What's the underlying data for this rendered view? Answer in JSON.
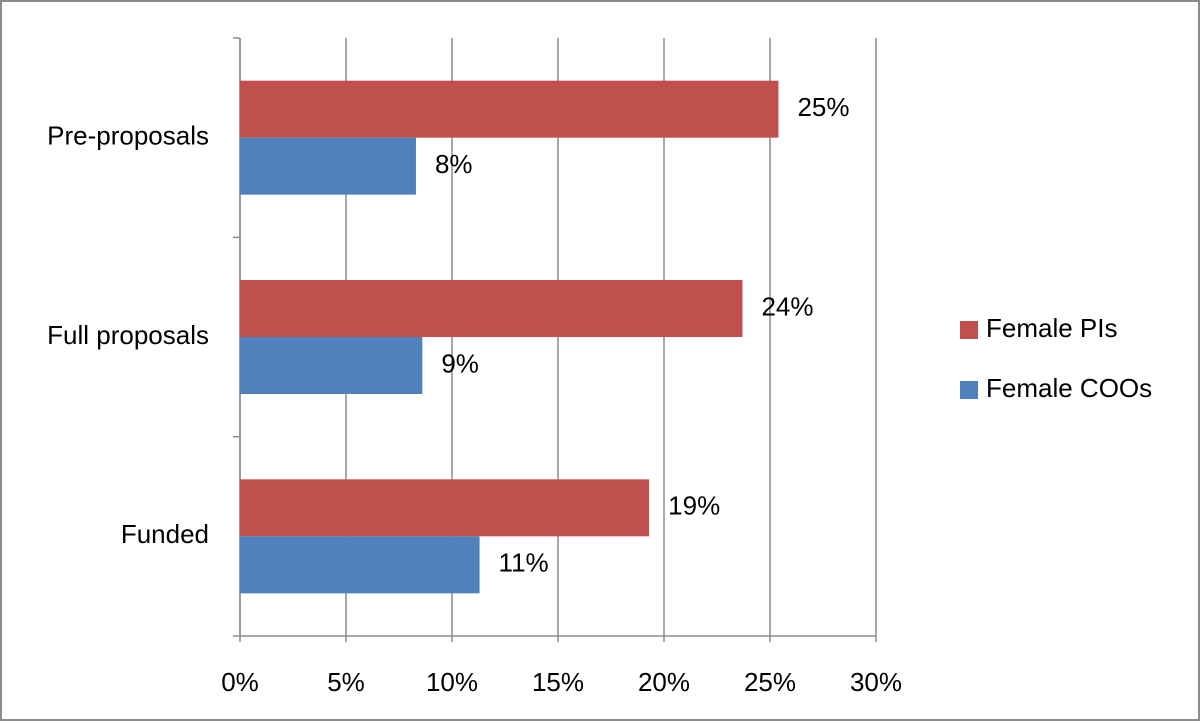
{
  "chart_data": {
    "type": "hbar",
    "categories": [
      "Pre-proposals",
      "Full proposals",
      "Funded"
    ],
    "series": [
      {
        "name": "Female PIs",
        "color": "#c0504d",
        "values": [
          25.4,
          23.7,
          19.3
        ],
        "value_labels": [
          "25%",
          "24%",
          "19%"
        ]
      },
      {
        "name": "Female COOs",
        "color": "#4f81bd",
        "values": [
          8.3,
          8.6,
          11.3
        ],
        "value_labels": [
          "8%",
          "9%",
          "11%"
        ]
      }
    ],
    "xlim": [
      0,
      30
    ],
    "xticks": [
      {
        "value": 0,
        "label": "0%"
      },
      {
        "value": 5,
        "label": "5%"
      },
      {
        "value": 10,
        "label": "10%"
      },
      {
        "value": 15,
        "label": "15%"
      },
      {
        "value": 20,
        "label": "20%"
      },
      {
        "value": 25,
        "label": "25%"
      },
      {
        "value": 30,
        "label": "30%"
      }
    ],
    "grid": true,
    "legend": "right"
  }
}
